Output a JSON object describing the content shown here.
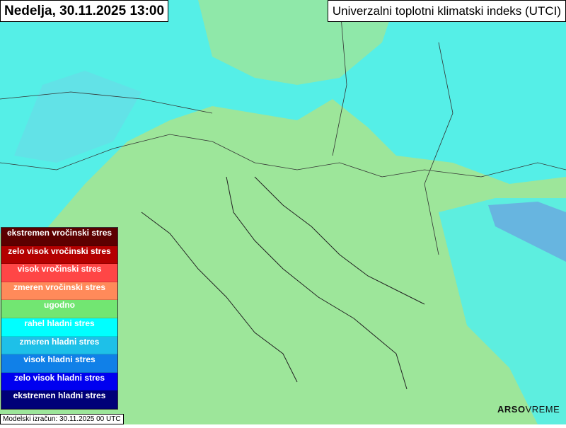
{
  "header": {
    "date_title": "Nedelja, 30.11.2025 13:00",
    "map_title": "Univerzalni toplotni klimatski indeks (UTCI)"
  },
  "legend": [
    {
      "label": "ekstremen vročinski stres",
      "color": "#5c0000"
    },
    {
      "label": "zelo visok vročinski stres",
      "color": "#b40000"
    },
    {
      "label": "visok vročinski stres",
      "color": "#ff4646"
    },
    {
      "label": "zmeren vročinski stres",
      "color": "#ff8a5a"
    },
    {
      "label": "ugodno",
      "color": "#72e672"
    },
    {
      "label": "rahel hladni stres",
      "color": "#00ffff"
    },
    {
      "label": "zmeren hladni stres",
      "color": "#1ec0e8"
    },
    {
      "label": "visok hladni stres",
      "color": "#1080e8"
    },
    {
      "label": "zelo visok hladni stres",
      "color": "#0000f0"
    },
    {
      "label": "ekstremen hladni stres",
      "color": "#000078"
    }
  ],
  "footer": {
    "model_run": "Modelski izračun: 30.11.2025 00 UTC",
    "logo_bold": "ARSO",
    "logo_light": "VREME"
  },
  "colors": {
    "land": "#9de69a",
    "cold_slight": "#4ef0f0",
    "cold_moderate": "#6aa6e0"
  }
}
